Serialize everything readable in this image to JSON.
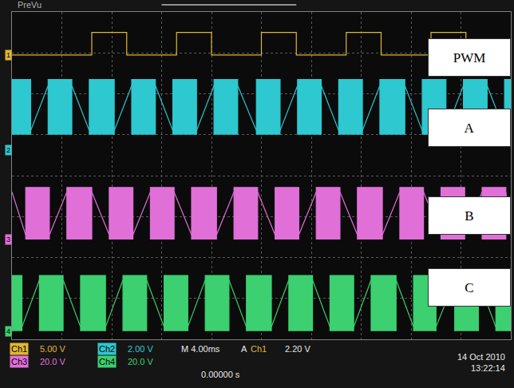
{
  "chart_data": {
    "type": "line",
    "xlim": [
      -20,
      20
    ],
    "xticks": [
      -20,
      -16,
      -12,
      -8,
      -4,
      0,
      4,
      8,
      12,
      16,
      20
    ],
    "ylim": [
      -4,
      4
    ],
    "yticks": [
      -4,
      -3,
      -2,
      -1,
      0,
      1,
      2,
      3,
      4
    ],
    "grid": true,
    "tick_labels": false,
    "annotations": [
      "PreVu",
      "Ch1",
      "5.00 V",
      "Ch2",
      "2.00 V",
      "M 4.00ms",
      "A",
      "Ch1",
      "2.20 V",
      "Ch3",
      "20.0 V",
      "Ch4",
      "20.0 V",
      "0.00000 s",
      "14 Oct 2010",
      "13:22:14"
    ],
    "series": [
      {
        "name": "PWM",
        "marker_label": "1",
        "ground": 2.95,
        "type": "line",
        "color": "#e0b830",
        "x": [
          -20,
          -13.6,
          -13.6,
          -10.8,
          -10.8,
          -6.8,
          -6.8,
          -4.0,
          -4.0,
          0,
          0,
          2.8,
          2.8,
          6.8,
          6.8,
          9.6,
          9.6,
          13.6,
          13.6,
          16.4,
          16.4,
          20
        ],
        "values": [
          2.95,
          2.95,
          3.5,
          3.5,
          2.95,
          2.95,
          3.5,
          3.5,
          2.95,
          2.95,
          3.5,
          3.5,
          2.95,
          2.95,
          3.5,
          3.5,
          2.95,
          2.95,
          3.5,
          3.5,
          2.95,
          2.95
        ]
      },
      {
        "name": "A",
        "marker_label": "2",
        "ground": 0.62,
        "type": "area",
        "color": "#2ec8d0",
        "x": [
          -20,
          -20,
          -18.5,
          -18.5,
          null,
          -18.5,
          -17.1,
          null,
          -17.1,
          -17.1,
          -15.2,
          -15.2,
          null,
          -15.2,
          -13.8,
          null,
          -13.8,
          -13.8,
          -11.8,
          -11.8,
          null,
          -11.8,
          -10.4,
          null,
          -10.4,
          -10.4,
          -8.5,
          -8.5,
          null,
          -8.5,
          -7.1,
          null,
          -7.1,
          -7.1,
          -5.2,
          -5.2,
          null,
          -5.2,
          -3.8,
          null,
          -3.8,
          -3.8,
          -1.9,
          -1.9,
          null,
          -1.9,
          -0.4,
          null,
          -0.4,
          -0.4,
          1.5,
          1.5,
          null,
          1.5,
          2.9,
          null,
          2.9,
          2.9,
          4.8,
          4.8,
          null,
          4.8,
          6.2,
          null,
          6.2,
          6.2,
          8.1,
          8.1,
          null,
          8.1,
          9.5,
          null,
          9.5,
          9.5,
          11.5,
          11.5,
          null,
          11.5,
          12.9,
          null,
          12.9,
          12.9,
          14.8,
          14.8,
          null,
          14.8,
          16.2,
          null,
          16.2,
          16.2,
          18.1,
          18.1,
          null,
          18.1,
          19.5,
          null,
          19.5,
          19.5,
          20,
          20
        ],
        "values": [
          1.0,
          2.35,
          2.35,
          1.0,
          null,
          1.1,
          2.2,
          null,
          1.0,
          2.35,
          2.35,
          1.0,
          null,
          2.2,
          1.1,
          null,
          1.0,
          2.35,
          2.35,
          1.0,
          null,
          1.1,
          2.2,
          null,
          1.0,
          2.35,
          2.35,
          1.0,
          null,
          2.2,
          1.1,
          null,
          1.0,
          2.35,
          2.35,
          1.0,
          null,
          1.1,
          2.2,
          null,
          1.0,
          2.35,
          2.35,
          1.0,
          null,
          2.2,
          1.1,
          null,
          1.0,
          2.35,
          2.35,
          1.0,
          null,
          1.1,
          2.2,
          null,
          1.0,
          2.35,
          2.35,
          1.0,
          null,
          2.2,
          1.1,
          null,
          1.0,
          2.35,
          2.35,
          1.0,
          null,
          1.1,
          2.2,
          null,
          1.0,
          2.35,
          2.35,
          1.0,
          null,
          2.2,
          1.1,
          null,
          1.0,
          2.35,
          2.35,
          1.0,
          null,
          1.1,
          2.2,
          null,
          1.0,
          2.35,
          2.35,
          1.0,
          null,
          2.2,
          1.1,
          null,
          1.0,
          2.35,
          2.35,
          1.0
        ]
      },
      {
        "name": "B",
        "marker_label": "3",
        "ground": -1.56,
        "type": "area",
        "color": "#e070d8",
        "x": [
          -20,
          -18.9,
          null,
          -18.9,
          -18.9,
          -17.0,
          -17.0,
          null,
          -17.0,
          -15.6,
          null,
          -15.6,
          -15.6,
          -13.6,
          -13.6,
          null,
          -13.6,
          -12.2,
          null,
          -12.2,
          -12.2,
          -10.3,
          -10.3,
          null,
          -10.3,
          -8.9,
          null,
          -8.9,
          -8.9,
          -7.0,
          -7.0,
          null,
          -7.0,
          -5.6,
          null,
          -5.6,
          -5.6,
          -3.6,
          -3.6,
          null,
          -3.6,
          -2.2,
          null,
          -2.2,
          -2.2,
          -0.3,
          -0.3,
          null,
          -0.3,
          1.1,
          null,
          1.1,
          1.1,
          3.0,
          3.0,
          null,
          3.0,
          4.4,
          null,
          4.4,
          4.4,
          6.3,
          6.3,
          null,
          6.3,
          7.7,
          null,
          7.7,
          7.7,
          9.7,
          9.7,
          null,
          9.7,
          11.1,
          null,
          11.1,
          11.1,
          13.0,
          13.0,
          null,
          13.0,
          14.4,
          null,
          14.4,
          14.4,
          16.3,
          16.3,
          null,
          16.3,
          17.7,
          null,
          17.7,
          17.7,
          19.6,
          19.6,
          null,
          19.6,
          20
        ],
        "values": [
          -0.4,
          -1.45,
          null,
          -1.56,
          -0.29,
          -0.29,
          -1.56,
          null,
          -1.45,
          -0.4,
          null,
          -1.56,
          -0.29,
          -0.29,
          -1.56,
          null,
          -0.4,
          -1.45,
          null,
          -1.56,
          -0.29,
          -0.29,
          -1.56,
          null,
          -1.45,
          -0.4,
          null,
          -1.56,
          -0.29,
          -0.29,
          -1.56,
          null,
          -0.4,
          -1.45,
          null,
          -1.56,
          -0.29,
          -0.29,
          -1.56,
          null,
          -1.45,
          -0.4,
          null,
          -1.56,
          -0.29,
          -0.29,
          -1.56,
          null,
          -0.4,
          -1.45,
          null,
          -1.56,
          -0.29,
          -0.29,
          -1.56,
          null,
          -1.45,
          -0.4,
          null,
          -1.56,
          -0.29,
          -0.29,
          -1.56,
          null,
          -0.4,
          -1.45,
          null,
          -1.56,
          -0.29,
          -0.29,
          -1.56,
          null,
          -1.45,
          -0.4,
          null,
          -1.56,
          -0.29,
          -0.29,
          -1.56,
          null,
          -0.4,
          -1.45,
          null,
          -1.56,
          -0.29,
          -0.29,
          -1.56,
          null,
          -1.45,
          -0.4,
          null,
          -1.56,
          -0.29,
          -0.29,
          -1.56,
          null,
          -0.4,
          -1.45
        ]
      },
      {
        "name": "C",
        "marker_label": "4",
        "ground": -3.8,
        "type": "area",
        "color": "#3cd070",
        "x": [
          -20,
          -20,
          -19.2,
          -19.2,
          null,
          -19.2,
          -17.8,
          null,
          -17.8,
          -17.8,
          -15.9,
          -15.9,
          null,
          -15.9,
          -14.5,
          null,
          -14.5,
          -14.5,
          -12.5,
          -12.5,
          null,
          -12.5,
          -11.1,
          null,
          -11.1,
          -11.1,
          -9.2,
          -9.2,
          null,
          -9.2,
          -7.8,
          null,
          -7.8,
          -7.8,
          -5.9,
          -5.9,
          null,
          -5.9,
          -4.5,
          null,
          -4.5,
          -4.5,
          -2.6,
          -2.6,
          null,
          -2.6,
          -1.2,
          null,
          -1.2,
          -1.2,
          0.8,
          0.8,
          null,
          0.8,
          2.2,
          null,
          2.2,
          2.2,
          4.1,
          4.1,
          null,
          4.1,
          5.5,
          null,
          5.5,
          5.5,
          7.4,
          7.4,
          null,
          7.4,
          8.8,
          null,
          8.8,
          8.8,
          10.8,
          10.8,
          null,
          10.8,
          12.2,
          null,
          12.2,
          12.2,
          14.0,
          14.0,
          null,
          14.0,
          15.5,
          null,
          15.5,
          15.5,
          17.4,
          17.4,
          null,
          17.4,
          18.8,
          null,
          18.8,
          18.8,
          20,
          20
        ],
        "values": [
          -3.8,
          -2.44,
          -2.44,
          -3.8,
          null,
          -3.7,
          -2.55,
          null,
          -3.8,
          -2.44,
          -2.44,
          -3.8,
          null,
          -2.55,
          -3.7,
          null,
          -3.8,
          -2.44,
          -2.44,
          -3.8,
          null,
          -3.7,
          -2.55,
          null,
          -3.8,
          -2.44,
          -2.44,
          -3.8,
          null,
          -2.55,
          -3.7,
          null,
          -3.8,
          -2.44,
          -2.44,
          -3.8,
          null,
          -3.7,
          -2.55,
          null,
          -3.8,
          -2.44,
          -2.44,
          -3.8,
          null,
          -2.55,
          -3.7,
          null,
          -3.8,
          -2.44,
          -2.44,
          -3.8,
          null,
          -3.7,
          -2.55,
          null,
          -3.8,
          -2.44,
          -2.44,
          -3.8,
          null,
          -2.55,
          -3.7,
          null,
          -3.8,
          -2.44,
          -2.44,
          -3.8,
          null,
          -3.7,
          -2.55,
          null,
          -3.8,
          -2.44,
          -2.44,
          -3.8,
          null,
          -2.55,
          -3.7,
          null,
          -3.8,
          -2.44,
          -2.44,
          -3.8,
          null,
          -3.7,
          -2.55,
          null,
          -3.8,
          -2.44,
          -2.44,
          -3.8,
          null,
          -2.55,
          -3.7,
          null,
          -3.8,
          -2.44,
          -2.44,
          -3.8
        ]
      }
    ]
  }
}
